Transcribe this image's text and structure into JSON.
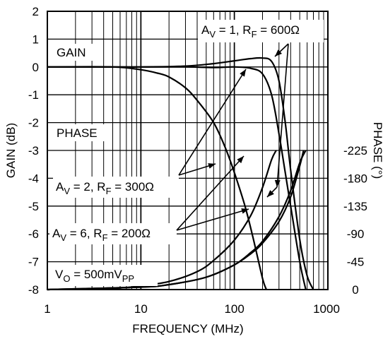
{
  "chart_data": {
    "type": "line",
    "xlabel": "FREQUENCY (MHz)",
    "ylabel_left": "GAIN (dB)",
    "ylabel_right": "PHASE (°)",
    "x_scale": "log",
    "xlim": [
      1,
      1000
    ],
    "ylim_left": [
      -8,
      2
    ],
    "ylim_right_phase": [
      -225,
      0
    ],
    "x_ticks": [
      "1",
      "10",
      "100",
      "1000"
    ],
    "y_ticks_left": [
      "2",
      "1",
      "0",
      "-1",
      "-2",
      "-3",
      "-4",
      "-5",
      "-6",
      "-7",
      "-8"
    ],
    "y_ticks_right": [
      "0",
      "-45",
      "-90",
      "-135",
      "-180",
      "-225"
    ],
    "grid": true,
    "annotations": {
      "gain": "GAIN",
      "phase": "PHASE",
      "vo": {
        "main": "V",
        "sub": "O",
        "rest": " = 500mV",
        "sub2": "PP"
      },
      "av1": {
        "a": "A",
        "asub": "V",
        "mid": " = 1, R",
        "rsub": "F",
        "end": " = 600Ω"
      },
      "av2": {
        "a": "A",
        "asub": "V",
        "mid": " = 2, R",
        "rsub": "F",
        "end": " = 300Ω"
      },
      "av6": {
        "a": "A",
        "asub": "V",
        "mid": " = 6, R",
        "rsub": "F",
        "end": " = 200Ω"
      }
    },
    "series": [
      {
        "group": "gain",
        "label_key": "av1",
        "x": [
          1,
          10,
          30,
          60,
          100,
          150,
          200,
          250,
          300,
          350,
          400,
          500,
          600,
          700
        ],
        "y": [
          0,
          0,
          0.03,
          0.12,
          0.22,
          0.3,
          0.32,
          0.2,
          -0.5,
          -2.0,
          -3.7,
          -6.2,
          -7.5,
          -8.0
        ]
      },
      {
        "group": "gain",
        "label_key": "av2",
        "x": [
          1,
          10,
          30,
          60,
          100,
          150,
          200,
          250,
          300,
          350,
          400,
          500,
          580
        ],
        "y": [
          0,
          0,
          0,
          -0.02,
          0,
          -0.05,
          -0.25,
          -1.0,
          -2.4,
          -3.8,
          -5.0,
          -7.0,
          -8.0
        ]
      },
      {
        "group": "gain",
        "label_key": "av6",
        "x": [
          1,
          5,
          10,
          15,
          20,
          30,
          40,
          60,
          80,
          100,
          130,
          160,
          200,
          220
        ],
        "y": [
          0,
          0,
          -0.1,
          -0.22,
          -0.36,
          -0.75,
          -1.2,
          -2.0,
          -2.9,
          -3.8,
          -5.0,
          -6.2,
          -7.6,
          -8.0
        ]
      },
      {
        "group": "phase",
        "label_key": "av1",
        "x": [
          1,
          10,
          20,
          50,
          100,
          150,
          200,
          300,
          400,
          500,
          550
        ],
        "y": [
          0,
          -4,
          -8,
          -20,
          -40,
          -58,
          -75,
          -110,
          -150,
          -200,
          -225
        ]
      },
      {
        "group": "phase",
        "label_key": "av2",
        "x": [
          1,
          10,
          20,
          50,
          100,
          150,
          200,
          300,
          400,
          500,
          580
        ],
        "y": [
          0,
          -4,
          -8,
          -20,
          -40,
          -60,
          -78,
          -118,
          -160,
          -205,
          -225
        ]
      },
      {
        "group": "phase",
        "label_key": "av6",
        "x": [
          1,
          5,
          10,
          20,
          40,
          60,
          100,
          150,
          200,
          250,
          280
        ],
        "y": [
          0,
          -2,
          -6,
          -13,
          -29,
          -47,
          -80,
          -120,
          -165,
          -210,
          -225
        ]
      }
    ]
  }
}
